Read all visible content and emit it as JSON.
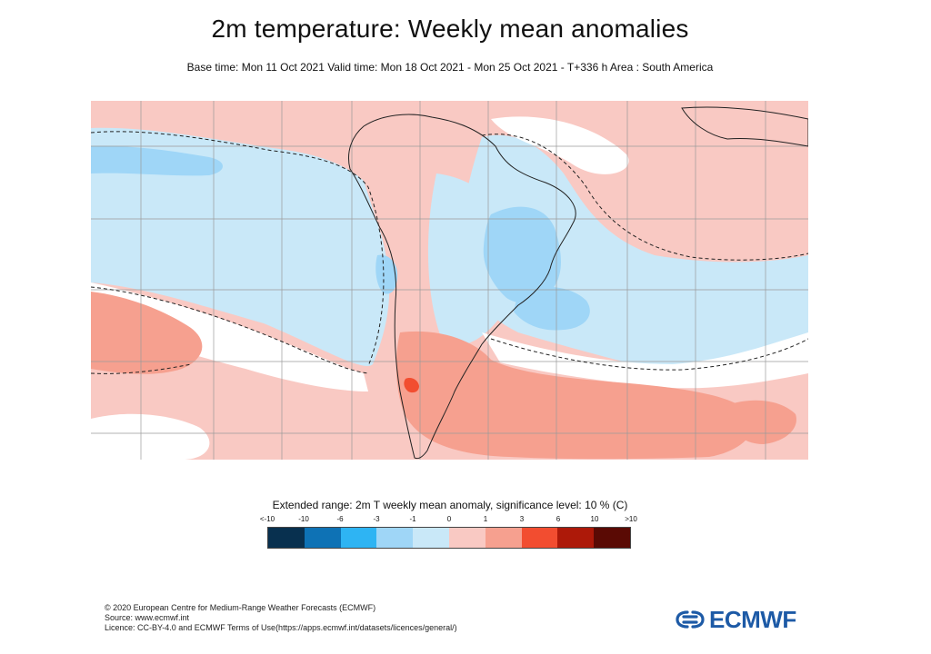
{
  "header": {
    "title": "2m temperature: Weekly mean anomalies",
    "subtitle": "Base time: Mon 11 Oct 2021 Valid time: Mon 18 Oct 2021 - Mon 25 Oct 2021 - T+336 h Area : South America"
  },
  "map": {
    "region": "South America",
    "significance_contour": "dashed",
    "palette": {
      "lt_minus10": "#08304f",
      "minus10_minus6": "#0e72b5",
      "minus6_minus3": "#2eb4f3",
      "minus3_minus1": "#9fd6f7",
      "minus1_0": "#c9e8f8",
      "0_1": "#f9c9c3",
      "1_3": "#f6a08f",
      "3_6": "#f24d30",
      "6_10": "#ad1909",
      "gt_10": "#5a0a04"
    }
  },
  "legend": {
    "title": "Extended range: 2m T weekly mean anomaly, significance level: 10 % (C)",
    "ticks": [
      "<-10",
      "-10",
      "-6",
      "-3",
      "-1",
      "0",
      "1",
      "3",
      "6",
      "10",
      ">10"
    ],
    "colors": [
      "#08304f",
      "#0e72b5",
      "#2eb4f3",
      "#9fd6f7",
      "#c9e8f8",
      "#f9c9c3",
      "#f6a08f",
      "#f24d30",
      "#ad1909",
      "#5a0a04"
    ]
  },
  "footer": {
    "line1": "© 2020 European Centre for Medium-Range Weather Forecasts (ECMWF)",
    "line2": "Source: www.ecmwf.int",
    "line3": "Licence: CC-BY-4.0 and ECMWF Terms of Use(https://apps.ecmwf.int/datasets/licences/general/)"
  },
  "logo": {
    "text": "ECMWF",
    "color": "#1d5aa6"
  }
}
